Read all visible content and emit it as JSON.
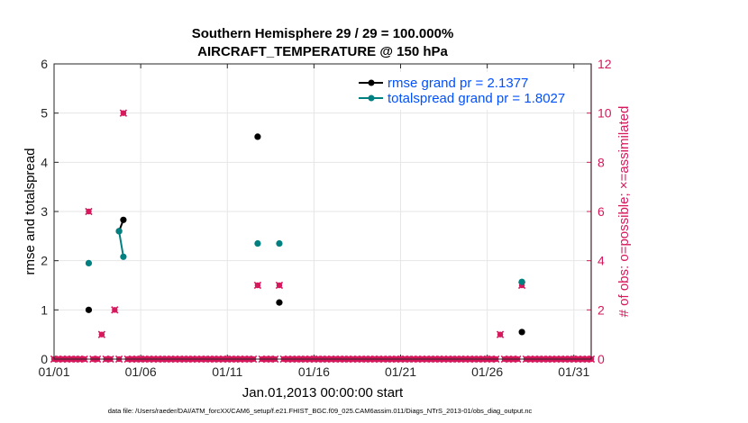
{
  "chart_data": {
    "type": "line",
    "title": "Southern Hemisphere 29 / 29 = 100.000%",
    "subtitle": "AIRCRAFT_TEMPERATURE @ 150 hPa",
    "xlabel": "Jan.01,2013 00:00:00 start",
    "ylabel": "rmse and totalspread",
    "ylabel_right": "# of obs: o=possible; ×=assimilated",
    "footer": "data file: /Users/raeder/DAI/ATM_forcXX/CAM6_setup/f.e21.FHIST_BGC.f09_025.CAM6assim.011/Diags_NTrS_2013-01/obs_diag_output.nc",
    "xlim": [
      1,
      32
    ],
    "ylim": [
      0,
      6
    ],
    "ylim_right": [
      0,
      12
    ],
    "x_ticks": [
      {
        "x": 1,
        "label": "01/01"
      },
      {
        "x": 6,
        "label": "01/06"
      },
      {
        "x": 11,
        "label": "01/11"
      },
      {
        "x": 16,
        "label": "01/16"
      },
      {
        "x": 21,
        "label": "01/21"
      },
      {
        "x": 26,
        "label": "01/26"
      },
      {
        "x": 31,
        "label": "01/31"
      }
    ],
    "y_ticks": [
      "0",
      "1",
      "2",
      "3",
      "4",
      "5",
      "6"
    ],
    "y_ticks_right": [
      "0",
      "2",
      "4",
      "6",
      "8",
      "10",
      "12"
    ],
    "colors": {
      "rmse": "#000000",
      "spread": "#008080",
      "obs": "#d6185c",
      "legend_text": "#0050ff"
    },
    "series": [
      {
        "name": "rmse",
        "legend": "rmse grand pr = 2.1377",
        "points": [
          [
            3,
            1.0
          ],
          [
            4.75,
            2.6
          ],
          [
            5,
            2.83
          ],
          [
            12.75,
            4.52
          ],
          [
            14,
            1.15
          ],
          [
            28,
            0.55
          ]
        ],
        "connected": [
          [
            1,
            2
          ]
        ]
      },
      {
        "name": "totalspread",
        "legend": "totalspread grand pr = 1.8027",
        "points": [
          [
            3,
            1.95
          ],
          [
            4.75,
            2.6
          ],
          [
            5,
            2.08
          ],
          [
            12.75,
            2.35
          ],
          [
            14,
            2.35
          ],
          [
            28,
            1.57
          ]
        ],
        "connected": [
          [
            1,
            2
          ]
        ]
      }
    ],
    "obs_counts": {
      "x_start": 1,
      "x_step": 0.25,
      "default": 0,
      "nonzero": [
        [
          3,
          6
        ],
        [
          3.75,
          1
        ],
        [
          4.5,
          2
        ],
        [
          5,
          10
        ],
        [
          12.75,
          3
        ],
        [
          14,
          3
        ],
        [
          26.75,
          1
        ],
        [
          28,
          3
        ]
      ]
    }
  }
}
